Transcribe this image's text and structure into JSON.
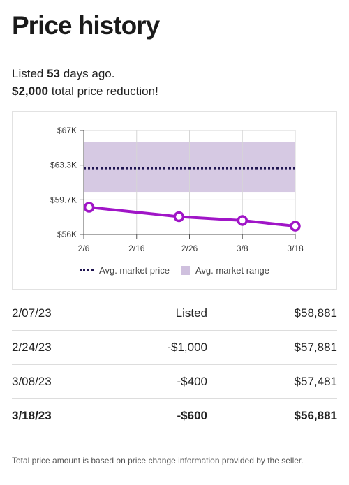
{
  "header": {
    "title": "Price history"
  },
  "summary": {
    "listed_prefix": "Listed ",
    "listed_days": "53",
    "listed_suffix": " days ago.",
    "reduction_amount": "$2,000",
    "reduction_suffix": " total price reduction!"
  },
  "chart_data": {
    "type": "line",
    "x_tick_labels": [
      "2/6",
      "2/16",
      "2/26",
      "3/8",
      "3/18"
    ],
    "y_tick_labels": [
      "$67K",
      "$63.3K",
      "$59.7K",
      "$56K"
    ],
    "ylim": [
      56000,
      67000
    ],
    "series": [
      {
        "name": "",
        "x": [
          "2/7",
          "2/24",
          "3/8",
          "3/18"
        ],
        "values": [
          58881,
          57881,
          57481,
          56881
        ],
        "color": "#a015c7"
      }
    ],
    "avg_market_price": 63000,
    "avg_market_range": [
      60500,
      65800
    ],
    "avg_market_price_color": "#1f1450",
    "avg_market_range_color": "#cfc0de",
    "grid": true,
    "legend_placement": "bottom-center",
    "legend": {
      "avg_price_label": "Avg. market price",
      "avg_range_label": "Avg. market range"
    }
  },
  "history": {
    "rows": [
      {
        "date": "2/07/23",
        "change": "Listed",
        "price": "$58,881"
      },
      {
        "date": "2/24/23",
        "change": "-$1,000",
        "price": "$57,881"
      },
      {
        "date": "3/08/23",
        "change": "-$400",
        "price": "$57,481"
      },
      {
        "date": "3/18/23",
        "change": "-$600",
        "price": "$56,881"
      }
    ]
  },
  "footnote": "Total price amount is based on price change information provided by the seller."
}
